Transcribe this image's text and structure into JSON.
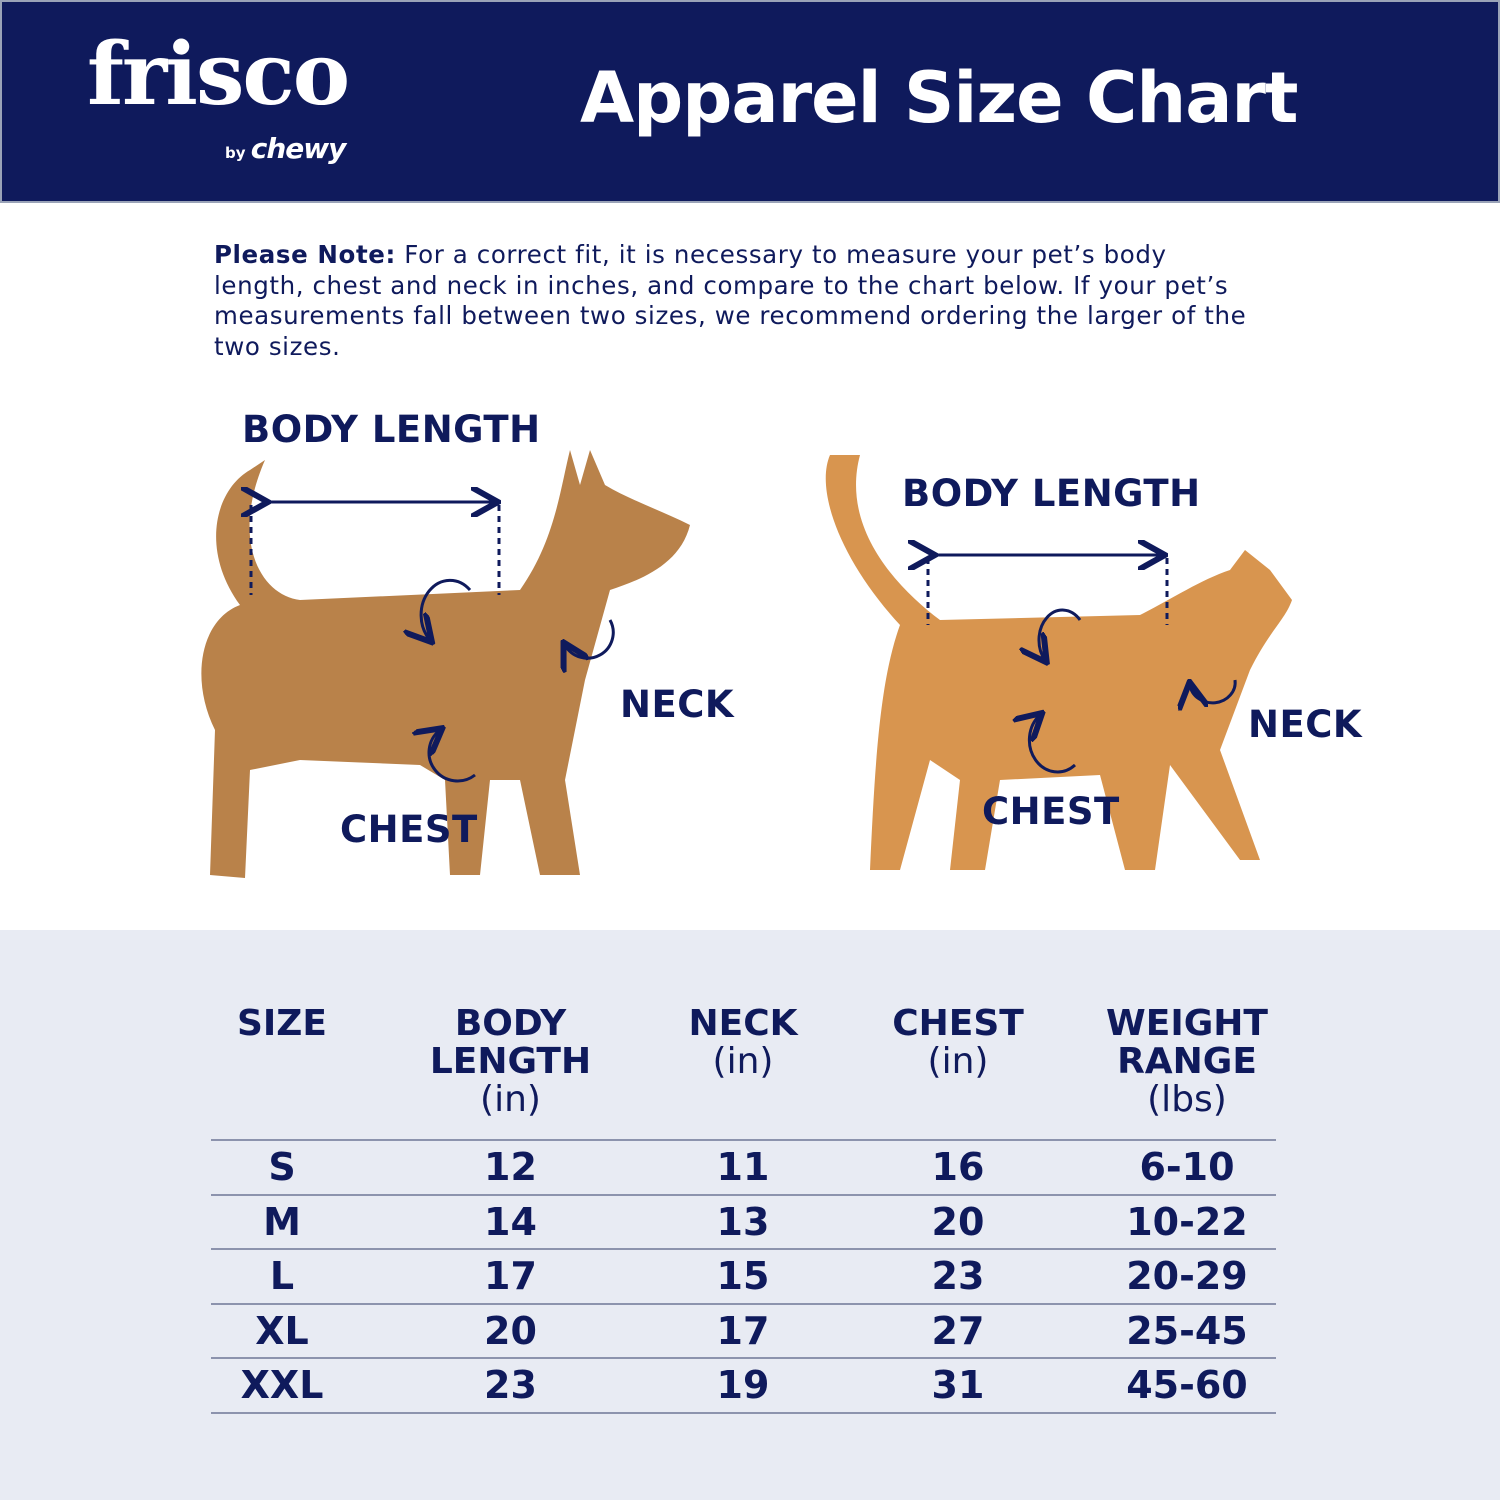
{
  "header": {
    "logo": {
      "brand": "frisco",
      "byline_prefix": "by",
      "byline": "chewy"
    },
    "title": "Apparel Size Chart",
    "bg_color": "#0f1a5c"
  },
  "note": {
    "label": "Please Note:",
    "text": " For a correct fit, it is necessary to measure your pet’s body length, chest and neck in inches, and compare to the chart below. If your pet’s measurements fall between two sizes, we recommend ordering the larger of the two sizes."
  },
  "dog": {
    "body_length": "BODY LENGTH",
    "neck": "NECK",
    "chest": "CHEST"
  },
  "cat": {
    "body_length": "BODY LENGTH",
    "neck": "NECK",
    "chest": "CHEST"
  },
  "table": {
    "headers": [
      {
        "title": "SIZE",
        "unit": ""
      },
      {
        "title": "BODY LENGTH",
        "unit": "(in)"
      },
      {
        "title": "NECK",
        "unit": "(in)"
      },
      {
        "title": "CHEST",
        "unit": "(in)"
      },
      {
        "title": "WEIGHT RANGE",
        "unit": "(lbs)"
      }
    ],
    "rows": [
      [
        "S",
        "12",
        "11",
        "16",
        "6-10"
      ],
      [
        "M",
        "14",
        "13",
        "20",
        "10-22"
      ],
      [
        "L",
        "17",
        "15",
        "23",
        "20-29"
      ],
      [
        "XL",
        "20",
        "17",
        "27",
        "25-45"
      ],
      [
        "XXL",
        "23",
        "19",
        "31",
        "45-60"
      ]
    ]
  }
}
